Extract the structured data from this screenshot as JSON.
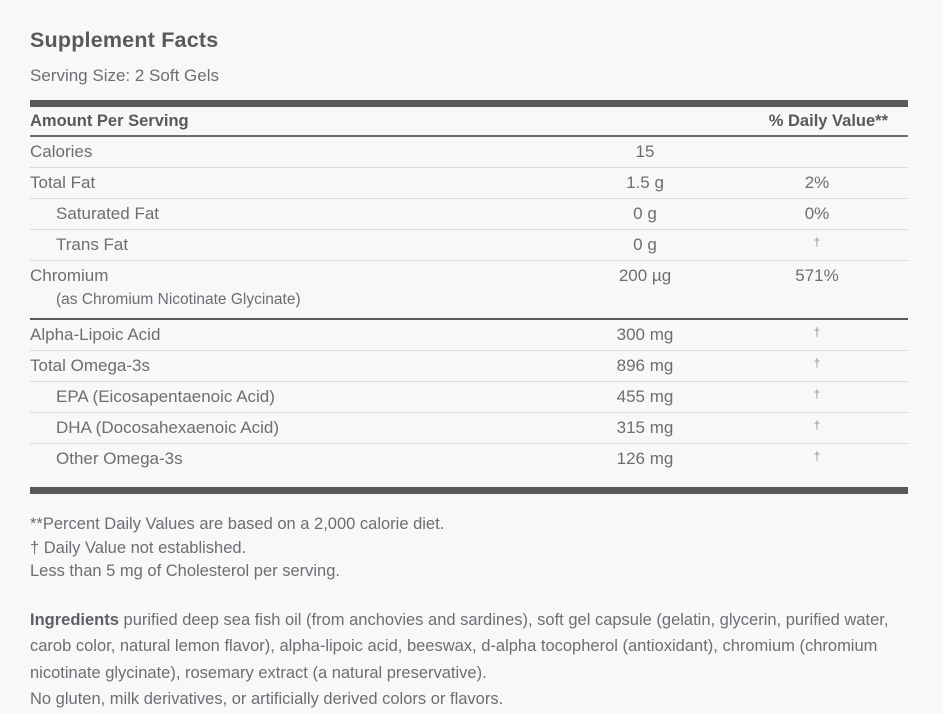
{
  "supplement": {
    "title": "Supplement Facts",
    "serving_size": "Serving Size: 2 Soft Gels",
    "table": {
      "header": {
        "amount_col": "Amount Per Serving",
        "dv_col": "% Daily Value**"
      },
      "rows": [
        {
          "name": "Calories",
          "amount": "15",
          "dv": ""
        },
        {
          "name": "Total Fat",
          "amount": "1.5 g",
          "dv": "2%"
        },
        {
          "name": "Saturated Fat",
          "amount": "0 g",
          "dv": "0%"
        },
        {
          "name": "Trans Fat",
          "amount": "0 g",
          "dv": "†"
        },
        {
          "name": "Chromium",
          "sub": "(as Chromium Nicotinate Glycinate)",
          "amount": "200 µg",
          "dv": "571%"
        },
        {
          "name": "Alpha-Lipoic Acid",
          "amount": "300 mg",
          "dv": "†"
        },
        {
          "name": "Total Omega-3s",
          "amount": "896 mg",
          "dv": "†"
        },
        {
          "name": "EPA (Eicosapentaenoic Acid)",
          "amount": "455 mg",
          "dv": "†"
        },
        {
          "name": "DHA (Docosahexaenoic Acid)",
          "amount": "315 mg",
          "dv": "†"
        },
        {
          "name": "Other Omega-3s",
          "amount": "126 mg",
          "dv": "†"
        }
      ]
    },
    "footnotes": [
      "**Percent Daily Values are based on a 2,000 calorie diet.",
      "† Daily Value not established.",
      "Less than 5 mg of Cholesterol per serving."
    ],
    "ingredients": {
      "label": "Ingredients",
      "text": " purified deep sea fish oil (from anchovies and sardines), soft gel capsule (gelatin, glycerin, purified water, carob color, natural lemon flavor), alpha-lipoic acid, beeswax, d-alpha tocopherol (antioxidant), chromium (chromium nicotinate glycinate), rosemary extract (a natural preservative).",
      "text2": "No gluten, milk derivatives, or artificially derived colors or flavors."
    },
    "colors": {
      "text_dark": "#58595b",
      "text_body": "#6d6e71",
      "rule_light": "#dadbdd",
      "rule_dark": "#58595b",
      "background": "#f7f8f9"
    }
  }
}
